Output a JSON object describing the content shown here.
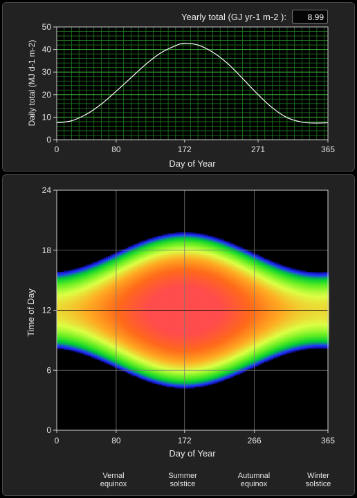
{
  "header": {
    "yearly_total_label": "Yearly total (GJ yr-1 m-2  ):",
    "yearly_total_value": "8.99"
  },
  "colors": {
    "grid_green": "#1f7a1f",
    "curve": "#ffffff",
    "panel": "#222222"
  },
  "annotations": [
    {
      "line1": "Vernal",
      "line2": "equinox"
    },
    {
      "line1": "Summer",
      "line2": "solstice"
    },
    {
      "line1": "Autumnal",
      "line2": "equinox"
    },
    {
      "line1": "Winter",
      "line2": "solstice"
    }
  ],
  "chart_data": [
    {
      "type": "line",
      "xlabel": "Day of Year",
      "ylabel": "Daily total (MJ  d-1 m-2)",
      "xlim": [
        0,
        365
      ],
      "ylim": [
        0,
        50
      ],
      "xticks": [
        0,
        80,
        172,
        271,
        365
      ],
      "yticks": [
        0,
        10,
        20,
        30,
        40,
        50
      ],
      "grid": true,
      "x": [
        0,
        20,
        40,
        60,
        80,
        100,
        120,
        140,
        160,
        172,
        190,
        210,
        230,
        250,
        271,
        290,
        310,
        330,
        345,
        365
      ],
      "y": [
        7.5,
        8.4,
        11.3,
        15.8,
        21.5,
        27.5,
        33.5,
        38.5,
        41.7,
        42.8,
        42.0,
        38.8,
        33.8,
        27.2,
        20.0,
        14.2,
        9.8,
        7.8,
        7.4,
        7.5
      ]
    },
    {
      "type": "heatmap",
      "xlabel": "Day of Year",
      "ylabel": "Time of Day",
      "xlim": [
        0,
        365
      ],
      "ylim": [
        0,
        24
      ],
      "xticks": [
        0,
        80,
        172,
        266,
        365
      ],
      "yticks": [
        0,
        6,
        12,
        18,
        24
      ],
      "grid": true,
      "vlines": [
        80,
        172,
        266,
        365
      ],
      "hlines": [
        6,
        12,
        18
      ],
      "peak_day": 172,
      "solar_noon_hour": 12,
      "half_day_length_hours": {
        "winter": 3.8,
        "summer": 7.8
      },
      "colorscale": [
        "#000000",
        "#0a0a8c",
        "#2233ff",
        "#00cc33",
        "#66ee22",
        "#ddff44",
        "#ffaa22",
        "#ff6a1a",
        "#ff4c4c"
      ]
    }
  ]
}
